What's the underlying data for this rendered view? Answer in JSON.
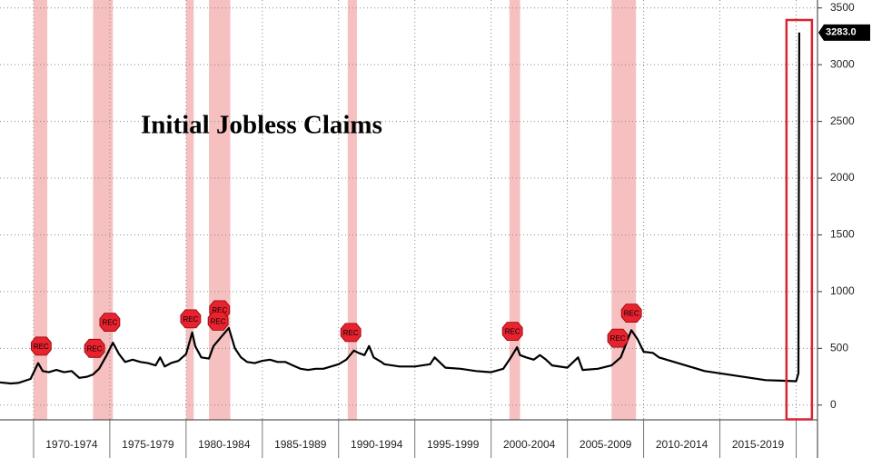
{
  "chart_data": {
    "type": "line",
    "title": "Initial Jobless Claims",
    "x": [
      1967.8,
      1968.5,
      1969.0,
      1969.8,
      1970.3,
      1970.6,
      1971.0,
      1971.5,
      1972.0,
      1972.5,
      1973.0,
      1973.5,
      1973.9,
      1974.3,
      1974.8,
      1975.2,
      1975.6,
      1976.0,
      1976.5,
      1977.0,
      1977.5,
      1978.0,
      1978.3,
      1978.6,
      1979.0,
      1979.5,
      1980.0,
      1980.4,
      1980.6,
      1981.0,
      1981.5,
      1981.8,
      1982.3,
      1982.8,
      1983.2,
      1983.6,
      1984.0,
      1984.5,
      1985.0,
      1985.5,
      1986.0,
      1986.5,
      1987.0,
      1987.5,
      1988.0,
      1988.5,
      1989.0,
      1989.5,
      1990.0,
      1990.5,
      1991.0,
      1991.3,
      1991.7,
      1992.0,
      1992.3,
      1992.8,
      1993.0,
      1993.5,
      1994.0,
      1995.0,
      1996.0,
      1996.3,
      1997.0,
      1998.0,
      1999.0,
      2000.0,
      2000.8,
      2001.3,
      2001.7,
      2001.9,
      2002.3,
      2002.8,
      2003.2,
      2003.6,
      2004.0,
      2005.0,
      2005.7,
      2006.0,
      2007.0,
      2007.9,
      2008.5,
      2009.2,
      2009.6,
      2010.0,
      2010.6,
      2011.0,
      2012.0,
      2013.0,
      2014.0,
      2015.0,
      2016.0,
      2017.0,
      2018.0,
      2019.0,
      2020.0,
      2020.15,
      2020.2
    ],
    "values": [
      200,
      190,
      195,
      230,
      370,
      300,
      290,
      310,
      290,
      300,
      240,
      250,
      270,
      320,
      440,
      550,
      450,
      380,
      400,
      380,
      370,
      350,
      420,
      340,
      370,
      390,
      450,
      640,
      520,
      420,
      410,
      520,
      600,
      680,
      500,
      420,
      380,
      370,
      390,
      400,
      380,
      380,
      350,
      320,
      310,
      320,
      320,
      340,
      360,
      400,
      480,
      460,
      440,
      520,
      420,
      380,
      360,
      350,
      340,
      340,
      360,
      420,
      330,
      320,
      300,
      290,
      320,
      420,
      510,
      440,
      420,
      400,
      440,
      400,
      350,
      330,
      420,
      310,
      320,
      350,
      420,
      660,
      580,
      470,
      460,
      420,
      380,
      340,
      300,
      280,
      260,
      240,
      220,
      215,
      210,
      280,
      3283
    ],
    "value_labels": [
      null,
      null,
      null,
      null,
      null,
      null,
      null,
      null,
      null,
      null,
      null,
      null,
      null,
      null,
      null,
      null,
      null,
      null,
      null,
      null,
      null,
      null,
      null,
      null,
      null,
      null,
      null,
      null,
      null,
      null,
      null,
      null,
      null,
      null,
      null,
      null,
      null,
      null,
      null,
      null,
      null,
      null,
      null,
      null,
      null,
      null,
      null,
      null,
      null,
      null,
      null,
      null,
      null,
      null,
      null,
      null,
      null,
      null,
      null,
      null,
      null,
      null,
      null,
      null,
      null,
      null,
      null,
      null,
      null,
      null,
      null,
      null,
      null,
      null,
      null,
      null,
      null,
      null,
      null,
      null,
      null,
      null,
      null,
      null,
      null,
      null,
      null,
      null,
      null,
      null,
      null,
      null,
      null,
      null,
      null,
      null,
      "3283.0"
    ],
    "color": "#000000",
    "recessions": [
      [
        1970.0,
        1970.9
      ],
      [
        1973.9,
        1975.2
      ],
      [
        1980.0,
        1980.5
      ],
      [
        1981.5,
        1982.9
      ],
      [
        1990.6,
        1991.2
      ],
      [
        2001.2,
        2001.9
      ],
      [
        2007.9,
        2009.5
      ]
    ],
    "annotations": [
      {
        "text": "REC",
        "x": 1970.5,
        "y": 520
      },
      {
        "text": "REC",
        "x": 1974.0,
        "y": 500
      },
      {
        "text": "REC",
        "x": 1975.0,
        "y": 730
      },
      {
        "text": "REC",
        "x": 1980.3,
        "y": 760
      },
      {
        "text": "REC",
        "x": 1982.2,
        "y": 840
      },
      {
        "text": "REC",
        "x": 1982.1,
        "y": 740
      },
      {
        "text": "REC",
        "x": 1990.8,
        "y": 640
      },
      {
        "text": "REC",
        "x": 2001.4,
        "y": 650
      },
      {
        "text": "REC",
        "x": 2008.3,
        "y": 590
      },
      {
        "text": "REC",
        "x": 2009.2,
        "y": 810
      }
    ],
    "xlim": [
      1967.8,
      2021.4
    ],
    "xticks": [
      {
        "value": 1970,
        "label": "1970-1974"
      },
      {
        "value": 1975,
        "label": "1975-1979"
      },
      {
        "value": 1980,
        "label": "1980-1984"
      },
      {
        "value": 1985,
        "label": "1985-1989"
      },
      {
        "value": 1990,
        "label": "1990-1994"
      },
      {
        "value": 1995,
        "label": "1995-1999"
      },
      {
        "value": 2000,
        "label": "2000-2004"
      },
      {
        "value": 2005,
        "label": "2005-2009"
      },
      {
        "value": 2010,
        "label": "2010-2014"
      },
      {
        "value": 2015,
        "label": "2015-2019"
      },
      {
        "value": 2020,
        "label": null
      }
    ],
    "ylim": [
      -130,
      3570
    ],
    "yticks": [
      0,
      500,
      1000,
      1500,
      2000,
      2500,
      3000,
      3500
    ],
    "grid": true
  }
}
